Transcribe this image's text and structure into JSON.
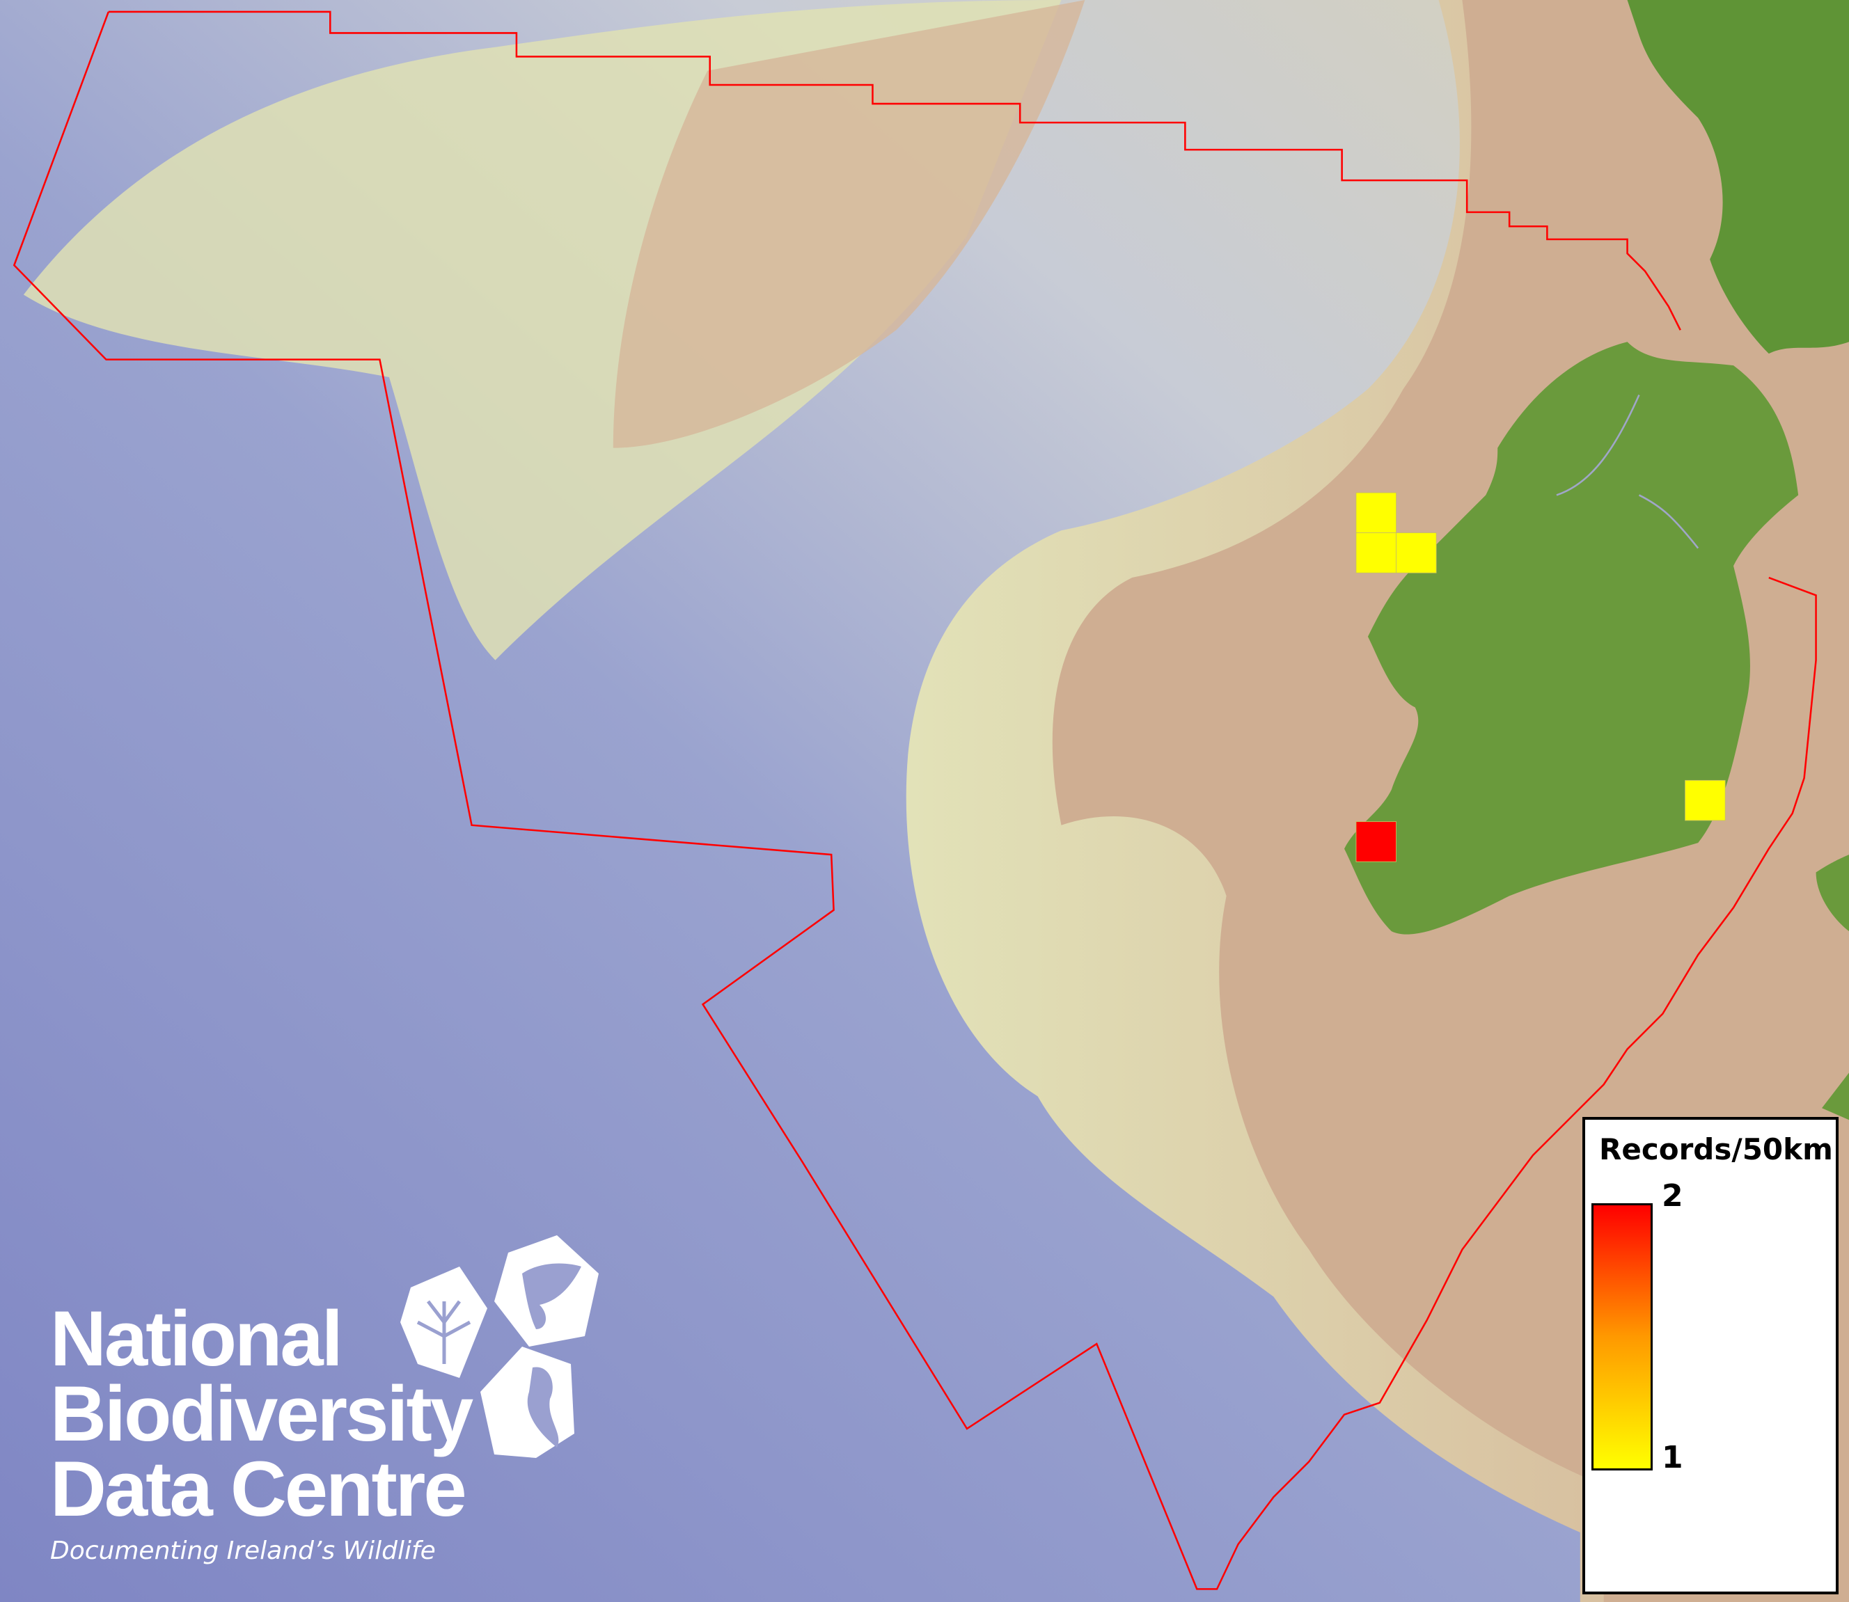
{
  "legend": {
    "title": "Records/50km",
    "max_label": "2",
    "min_label": "1",
    "color_min": "#ffff00",
    "color_max": "#ff0000"
  },
  "records": [
    {
      "grid": "north-west 1",
      "value": 1
    },
    {
      "grid": "north-west 2",
      "value": 1
    },
    {
      "grid": "north-west 3",
      "value": 1
    },
    {
      "grid": "south-east",
      "value": 1
    },
    {
      "grid": "south-west",
      "value": 2
    }
  ],
  "boundary_color": "#ff0000",
  "land_color": "#6a9a3c",
  "shelf_color": "#cfae92",
  "ocean_color": "#8088c6",
  "logo": {
    "line1": "National",
    "line2": "Biodiversity",
    "line3": "Data Centre",
    "tagline": "Documenting Ireland’s Wildlife"
  }
}
